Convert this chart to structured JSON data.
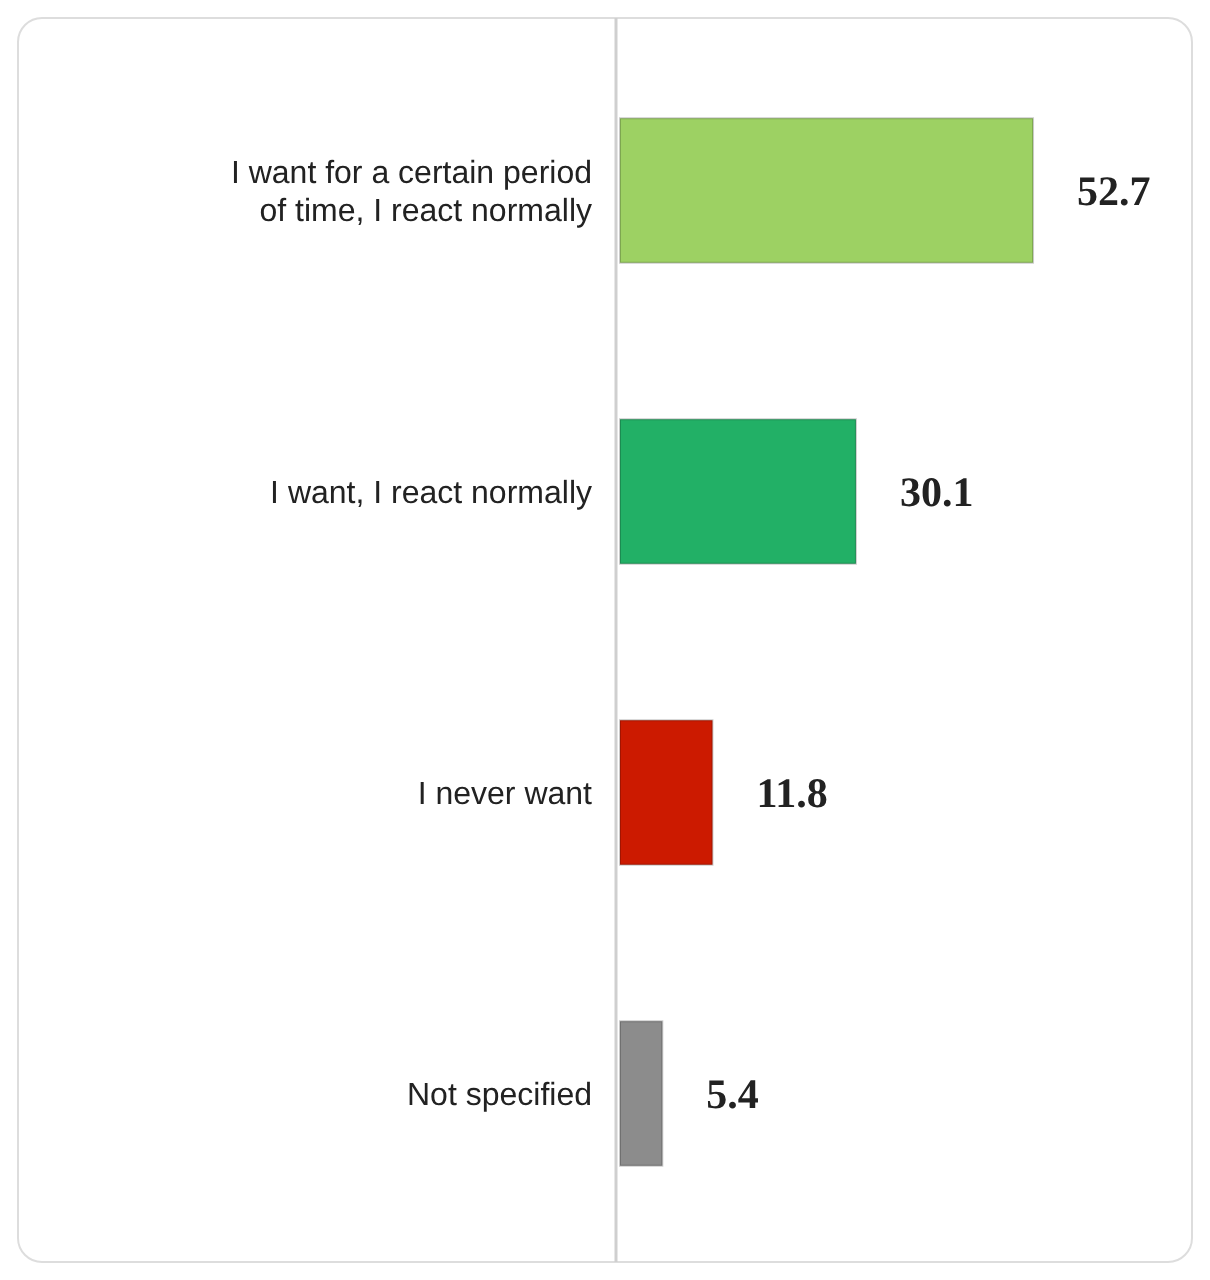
{
  "chart_data": {
    "type": "bar",
    "orientation": "horizontal",
    "data_labels": true,
    "categories": [
      "I want for a certain period of time, I react normally",
      "I want, I react normally",
      "I never want",
      "Not specified"
    ],
    "values": [
      52.7,
      30.1,
      11.8,
      5.4
    ],
    "colors": [
      "#9dd163",
      "#22b066",
      "#cc1a00",
      "#8c8c8c"
    ]
  }
}
